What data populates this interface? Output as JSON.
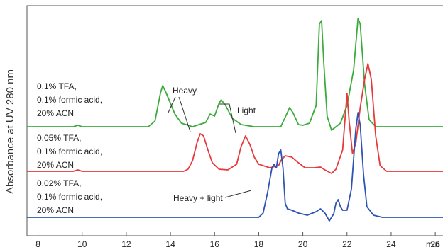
{
  "chart_data": {
    "type": "line",
    "title": "",
    "xlabel": "min",
    "ylabel": "Absorbance at UV 280 nm",
    "xlim": [
      7.5,
      26.8
    ],
    "xticks": [
      8,
      10,
      12,
      14,
      16,
      18,
      20,
      22,
      24,
      26
    ],
    "tick_labels": [
      "8",
      "10",
      "12",
      "14",
      "16",
      "18",
      "20",
      "22",
      "24",
      "26"
    ],
    "grid": false,
    "legend": "none",
    "series": [
      {
        "label_lines": [
          "0.1% TFA,",
          "0.1% formic acid,",
          "20% ACN"
        ],
        "color": "#3bab3b",
        "points": [
          [
            7.5,
            0.0
          ],
          [
            9.6,
            0.0
          ],
          [
            9.8,
            0.02
          ],
          [
            10.0,
            0.0
          ],
          [
            13.0,
            0.0
          ],
          [
            13.3,
            0.08
          ],
          [
            13.55,
            0.48
          ],
          [
            13.65,
            0.58
          ],
          [
            13.8,
            0.48
          ],
          [
            14.0,
            0.33
          ],
          [
            14.2,
            0.18
          ],
          [
            14.5,
            0.05
          ],
          [
            15.0,
            0.0
          ],
          [
            15.6,
            0.06
          ],
          [
            15.8,
            0.18
          ],
          [
            16.0,
            0.15
          ],
          [
            16.2,
            0.33
          ],
          [
            16.3,
            0.38
          ],
          [
            16.5,
            0.3
          ],
          [
            16.8,
            0.12
          ],
          [
            17.2,
            0.03
          ],
          [
            17.8,
            0.0
          ],
          [
            19.0,
            0.0
          ],
          [
            19.3,
            0.2
          ],
          [
            19.4,
            0.27
          ],
          [
            19.55,
            0.2
          ],
          [
            19.8,
            0.03
          ],
          [
            20.0,
            0.02
          ],
          [
            20.3,
            0.05
          ],
          [
            20.6,
            0.3
          ],
          [
            20.75,
            1.45
          ],
          [
            20.85,
            1.5
          ],
          [
            20.95,
            0.9
          ],
          [
            21.1,
            0.15
          ],
          [
            21.3,
            -0.05
          ],
          [
            21.7,
            0.05
          ],
          [
            22.0,
            0.3
          ],
          [
            22.3,
            0.8
          ],
          [
            22.5,
            1.53
          ],
          [
            22.6,
            1.45
          ],
          [
            22.8,
            0.6
          ],
          [
            23.0,
            0.1
          ],
          [
            23.3,
            0.0
          ],
          [
            26.8,
            0.0
          ]
        ]
      },
      {
        "label_lines": [
          "0.05% TFA,",
          "0.1% formic acid,",
          "20% ACN"
        ],
        "color": "#e8383a",
        "points": [
          [
            7.5,
            0.0
          ],
          [
            9.6,
            0.0
          ],
          [
            9.8,
            0.02
          ],
          [
            10.0,
            0.0
          ],
          [
            14.6,
            0.0
          ],
          [
            14.8,
            0.03
          ],
          [
            15.0,
            0.15
          ],
          [
            15.2,
            0.4
          ],
          [
            15.35,
            0.53
          ],
          [
            15.5,
            0.5
          ],
          [
            15.7,
            0.3
          ],
          [
            15.9,
            0.12
          ],
          [
            16.2,
            0.03
          ],
          [
            16.6,
            0.02
          ],
          [
            17.0,
            0.1
          ],
          [
            17.2,
            0.35
          ],
          [
            17.4,
            0.5
          ],
          [
            17.6,
            0.38
          ],
          [
            17.8,
            0.2
          ],
          [
            18.0,
            0.1
          ],
          [
            18.5,
            0.05
          ],
          [
            18.9,
            0.08
          ],
          [
            19.0,
            0.15
          ],
          [
            19.2,
            0.22
          ],
          [
            19.5,
            0.2
          ],
          [
            19.8,
            0.12
          ],
          [
            20.1,
            0.05
          ],
          [
            20.5,
            0.05
          ],
          [
            20.8,
            0.06
          ],
          [
            21.0,
            0.02
          ],
          [
            21.3,
            -0.03
          ],
          [
            21.5,
            0.03
          ],
          [
            21.8,
            0.3
          ],
          [
            21.9,
            0.7
          ],
          [
            22.0,
            1.1
          ],
          [
            22.1,
            0.7
          ],
          [
            22.25,
            0.25
          ],
          [
            22.4,
            0.4
          ],
          [
            22.6,
            0.9
          ],
          [
            22.8,
            1.3
          ],
          [
            22.95,
            1.52
          ],
          [
            23.1,
            1.3
          ],
          [
            23.3,
            0.5
          ],
          [
            23.5,
            0.08
          ],
          [
            23.8,
            0.0
          ],
          [
            26.8,
            0.0
          ]
        ]
      },
      {
        "label_lines": [
          "0.02% TFA,",
          "0.1% formic acid,",
          "20% ACN"
        ],
        "color": "#2e54b3",
        "points": [
          [
            7.5,
            0.0
          ],
          [
            18.0,
            0.0
          ],
          [
            18.2,
            0.06
          ],
          [
            18.4,
            0.35
          ],
          [
            18.6,
            0.7
          ],
          [
            18.7,
            0.75
          ],
          [
            18.8,
            0.7
          ],
          [
            18.9,
            0.9
          ],
          [
            19.0,
            0.95
          ],
          [
            19.1,
            0.7
          ],
          [
            19.2,
            0.2
          ],
          [
            19.3,
            0.12
          ],
          [
            19.5,
            0.1
          ],
          [
            19.8,
            0.06
          ],
          [
            20.2,
            0.03
          ],
          [
            20.6,
            0.08
          ],
          [
            20.8,
            0.12
          ],
          [
            21.0,
            0.06
          ],
          [
            21.2,
            -0.05
          ],
          [
            21.4,
            0.05
          ],
          [
            21.5,
            0.2
          ],
          [
            21.6,
            0.25
          ],
          [
            21.7,
            0.15
          ],
          [
            21.8,
            0.1
          ],
          [
            22.0,
            0.1
          ],
          [
            22.2,
            0.4
          ],
          [
            22.4,
            1.25
          ],
          [
            22.5,
            1.48
          ],
          [
            22.6,
            1.3
          ],
          [
            22.75,
            0.6
          ],
          [
            22.9,
            0.15
          ],
          [
            23.2,
            0.03
          ],
          [
            23.6,
            0.0
          ],
          [
            26.8,
            0.0
          ]
        ]
      }
    ],
    "annotations": [
      {
        "text": "Heavy",
        "target_series": 1
      },
      {
        "text": "Light",
        "target_series": 1
      },
      {
        "text": "Heavy + light",
        "target_series": 2
      }
    ]
  }
}
